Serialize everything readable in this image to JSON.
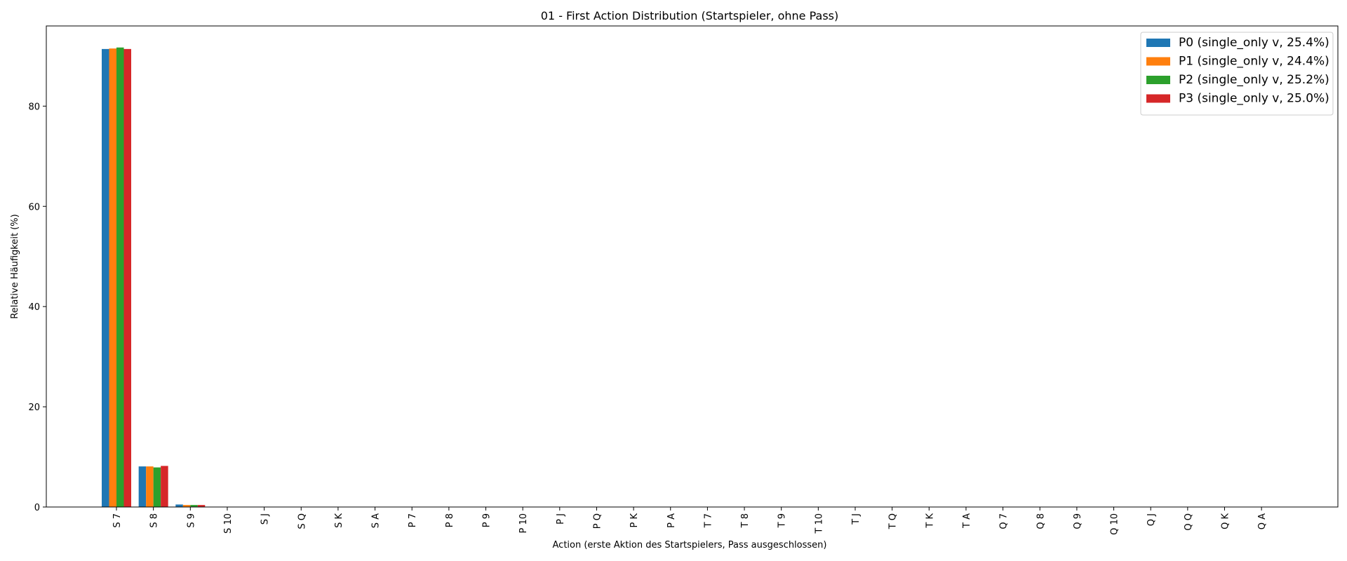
{
  "chart_data": {
    "type": "bar",
    "title": "01 - First Action Distribution (Startspieler, ohne Pass)",
    "xlabel": "Action (erste Aktion des Startspielers, Pass ausgeschlossen)",
    "ylabel": "Relative Häufigkeit (%)",
    "ylim": [
      0,
      96
    ],
    "yticks": [
      0,
      20,
      40,
      60,
      80
    ],
    "grid": false,
    "legend_position": "top-right",
    "categories": [
      "S 7",
      "S 8",
      "S 9",
      "S 10",
      "S J",
      "S Q",
      "S K",
      "S A",
      "P 7",
      "P 8",
      "P 9",
      "P 10",
      "P J",
      "P Q",
      "P K",
      "P A",
      "T 7",
      "T 8",
      "T 9",
      "T 10",
      "T J",
      "T Q",
      "T K",
      "T A",
      "Q 7",
      "Q 8",
      "Q 9",
      "Q 10",
      "Q J",
      "Q Q",
      "Q K",
      "Q A"
    ],
    "series": [
      {
        "name": "P0 (single_only v, 25.4%)",
        "color": "#1f77b4",
        "values": [
          91.4,
          8.1,
          0.5,
          0,
          0,
          0,
          0,
          0,
          0,
          0,
          0,
          0,
          0,
          0,
          0,
          0,
          0,
          0,
          0,
          0,
          0,
          0,
          0,
          0,
          0,
          0,
          0,
          0,
          0,
          0,
          0,
          0
        ]
      },
      {
        "name": "P1 (single_only v, 24.4%)",
        "color": "#ff7f0e",
        "values": [
          91.5,
          8.1,
          0.4,
          0,
          0,
          0,
          0,
          0,
          0,
          0,
          0,
          0,
          0,
          0,
          0,
          0,
          0,
          0,
          0,
          0,
          0,
          0,
          0,
          0,
          0,
          0,
          0,
          0,
          0,
          0,
          0,
          0
        ]
      },
      {
        "name": "P2 (single_only v, 25.2%)",
        "color": "#2ca02c",
        "values": [
          91.7,
          7.9,
          0.4,
          0,
          0,
          0,
          0,
          0,
          0,
          0,
          0,
          0,
          0,
          0,
          0,
          0,
          0,
          0,
          0,
          0,
          0,
          0,
          0,
          0,
          0,
          0,
          0,
          0,
          0,
          0,
          0,
          0
        ]
      },
      {
        "name": "P3 (single_only v, 25.0%)",
        "color": "#d62728",
        "values": [
          91.4,
          8.2,
          0.4,
          0,
          0,
          0,
          0,
          0,
          0,
          0,
          0,
          0,
          0,
          0,
          0,
          0,
          0,
          0,
          0,
          0,
          0,
          0,
          0,
          0,
          0,
          0,
          0,
          0,
          0,
          0,
          0,
          0
        ]
      }
    ]
  }
}
